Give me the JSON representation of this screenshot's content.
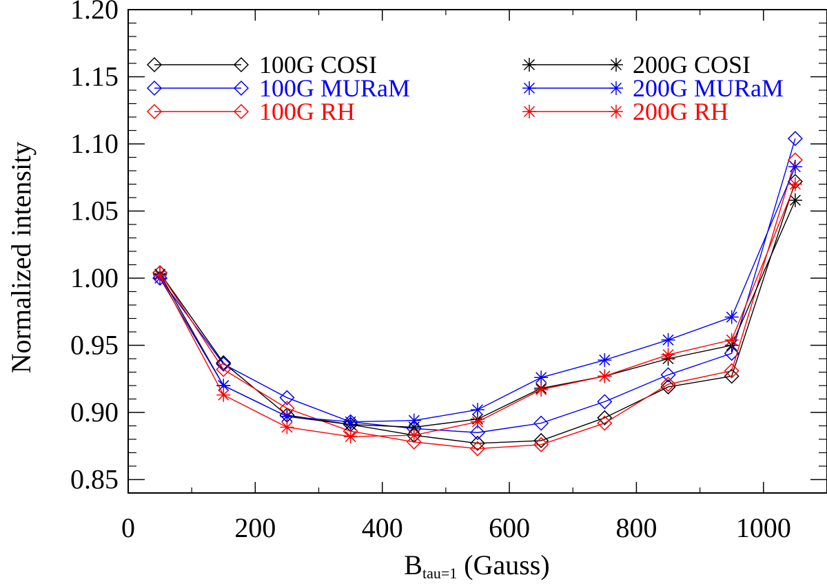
{
  "chart_data": {
    "type": "line",
    "title": "",
    "xlabel": "(Gauss)",
    "xlabel_base": "B",
    "xlabel_subscript": "tau=1",
    "ylabel": "Normalized intensity",
    "xlim": [
      0,
      1100
    ],
    "ylim": [
      0.84,
      1.2
    ],
    "x_ticks": [
      0,
      200,
      400,
      600,
      800,
      1000
    ],
    "x_tick_labels": [
      "0",
      "200",
      "400",
      "600",
      "800",
      "1000"
    ],
    "x_minor_step": 100,
    "y_ticks": [
      0.85,
      0.9,
      0.95,
      1.0,
      1.05,
      1.1,
      1.15,
      1.2
    ],
    "y_tick_labels": [
      "0.85",
      "0.90",
      "0.95",
      "1.00",
      "1.05",
      "1.10",
      "1.15",
      "1.20"
    ],
    "y_minor_step": 0.01,
    "grid": false,
    "legend_position": "top",
    "x": [
      50,
      150,
      250,
      350,
      450,
      550,
      650,
      750,
      850,
      950,
      1050
    ],
    "series": [
      {
        "name": "100G COSI",
        "color": "#000000",
        "marker": "diamond",
        "values": [
          1.004,
          0.937,
          0.898,
          0.891,
          0.883,
          0.877,
          0.879,
          0.896,
          0.919,
          0.927,
          1.072
        ]
      },
      {
        "name": "100G MURaM",
        "color": "#0000ff",
        "marker": "diamond",
        "values": [
          1.0,
          0.936,
          0.911,
          0.893,
          0.888,
          0.885,
          0.892,
          0.908,
          0.928,
          0.944,
          1.104
        ]
      },
      {
        "name": "100G RH",
        "color": "#ff0000",
        "marker": "diamond",
        "values": [
          1.004,
          0.932,
          0.903,
          0.886,
          0.878,
          0.873,
          0.876,
          0.892,
          0.921,
          0.931,
          1.088
        ]
      },
      {
        "name": "200G COSI",
        "color": "#000000",
        "marker": "asterisk",
        "values": [
          1.003,
          0.92,
          0.897,
          0.891,
          0.889,
          0.895,
          0.918,
          0.927,
          0.94,
          0.95,
          1.058
        ]
      },
      {
        "name": "200G MURaM",
        "color": "#0000ff",
        "marker": "asterisk",
        "values": [
          1.0,
          0.92,
          0.897,
          0.893,
          0.894,
          0.902,
          0.926,
          0.939,
          0.954,
          0.971,
          1.083
        ]
      },
      {
        "name": "200G RH",
        "color": "#ff0000",
        "marker": "asterisk",
        "values": [
          1.002,
          0.913,
          0.889,
          0.882,
          0.883,
          0.893,
          0.917,
          0.927,
          0.943,
          0.954,
          1.07
        ]
      }
    ]
  }
}
